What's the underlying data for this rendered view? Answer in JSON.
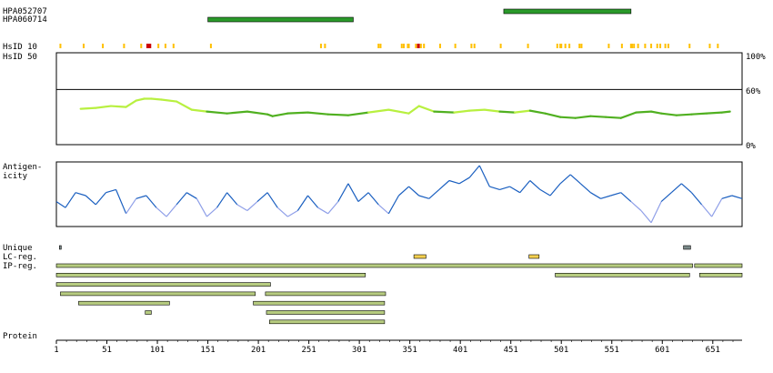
{
  "chart_data": {
    "type": "protein-feature-plot",
    "protein_length": 680,
    "x_ticks": [
      1,
      51,
      101,
      151,
      201,
      251,
      301,
      351,
      401,
      451,
      501,
      551,
      601,
      651
    ],
    "x_axis_label": "Protein",
    "antigens": [
      {
        "name": "HPA052707",
        "start": 444,
        "end": 570
      },
      {
        "name": "HPA060714",
        "start": 151,
        "end": 295
      }
    ],
    "hsid10": {
      "label": "HsID 10",
      "medium_positions": [
        5,
        28,
        47,
        68,
        85,
        102,
        109,
        117,
        154,
        263,
        267,
        320,
        322,
        343,
        345,
        349,
        350,
        357,
        362,
        365,
        381,
        396,
        412,
        415,
        441,
        468,
        497,
        500,
        501,
        505,
        509,
        519,
        521,
        548,
        561,
        570,
        571,
        573,
        577,
        584,
        590,
        596,
        599,
        604,
        607,
        628,
        648,
        656
      ],
      "high_positions": [
        91,
        92,
        93,
        94,
        359,
        360
      ]
    },
    "hsid50": {
      "label": "HsID 50",
      "y_ticks": [
        "100%",
        "60%",
        "0%"
      ],
      "threshold_percent": 60,
      "x": [
        25,
        40,
        55,
        70,
        80,
        88,
        95,
        105,
        120,
        135,
        150,
        170,
        190,
        210,
        215,
        230,
        250,
        270,
        290,
        310,
        330,
        350,
        360,
        375,
        395,
        410,
        425,
        440,
        455,
        470,
        485,
        500,
        515,
        530,
        545,
        560,
        575,
        590,
        600,
        615,
        630,
        645,
        660,
        668
      ],
      "values": [
        39,
        40,
        42,
        41,
        48,
        50,
        50,
        49,
        47,
        38,
        36,
        34,
        36,
        33,
        31,
        34,
        35,
        33,
        32,
        35,
        38,
        34,
        42,
        36,
        35,
        37,
        38,
        36,
        35,
        37,
        34,
        30,
        29,
        31,
        30,
        29,
        35,
        36,
        34,
        32,
        33,
        34,
        35,
        36
      ]
    },
    "antigenicity": {
      "label": "Antigen-\nicity",
      "x": [
        1,
        10,
        20,
        30,
        40,
        50,
        60,
        70,
        80,
        90,
        100,
        110,
        120,
        130,
        140,
        150,
        160,
        170,
        180,
        190,
        200,
        210,
        220,
        230,
        240,
        250,
        260,
        270,
        280,
        290,
        300,
        310,
        320,
        330,
        340,
        350,
        360,
        370,
        380,
        390,
        400,
        410,
        420,
        430,
        440,
        450,
        460,
        470,
        480,
        490,
        500,
        510,
        520,
        530,
        540,
        550,
        560,
        570,
        580,
        590,
        600,
        610,
        620,
        630,
        640,
        650,
        660,
        670,
        680
      ],
      "values": [
        0.4,
        0.3,
        0.55,
        0.5,
        0.35,
        0.55,
        0.6,
        0.2,
        0.45,
        0.5,
        0.3,
        0.15,
        0.35,
        0.55,
        0.45,
        0.15,
        0.3,
        0.55,
        0.35,
        0.25,
        0.4,
        0.55,
        0.3,
        0.15,
        0.25,
        0.5,
        0.3,
        0.2,
        0.4,
        0.7,
        0.4,
        0.55,
        0.35,
        0.2,
        0.5,
        0.65,
        0.5,
        0.45,
        0.6,
        0.75,
        0.7,
        0.8,
        1.0,
        0.65,
        0.6,
        0.65,
        0.55,
        0.75,
        0.6,
        0.5,
        0.7,
        0.85,
        0.7,
        0.55,
        0.45,
        0.5,
        0.55,
        0.4,
        0.25,
        0.05,
        0.4,
        0.55,
        0.7,
        0.55,
        0.35,
        0.15,
        0.45,
        0.5,
        0.45
      ]
    },
    "unique": {
      "label": "Unique",
      "segments": [
        {
          "start": 4,
          "end": 5
        },
        {
          "start": 622,
          "end": 629
        }
      ]
    },
    "lc_reg": {
      "label": "LC-reg.",
      "segments": [
        {
          "start": 355,
          "end": 367
        },
        {
          "start": 469,
          "end": 479
        }
      ]
    },
    "ip_reg": {
      "label": "IP-reg.",
      "rows": [
        [
          {
            "start": 1,
            "end": 631
          },
          {
            "start": 633,
            "end": 680
          }
        ],
        [
          {
            "start": 1,
            "end": 307
          },
          {
            "start": 495,
            "end": 628
          },
          {
            "start": 638,
            "end": 680
          }
        ],
        [
          {
            "start": 1,
            "end": 213
          }
        ],
        [
          {
            "start": 5,
            "end": 198
          },
          {
            "start": 208,
            "end": 327
          }
        ],
        [
          {
            "start": 23,
            "end": 113
          },
          {
            "start": 196,
            "end": 326
          }
        ],
        [
          {
            "start": 89,
            "end": 95
          },
          {
            "start": 209,
            "end": 326
          }
        ],
        [
          {
            "start": 212,
            "end": 326
          }
        ]
      ]
    },
    "colors": {
      "antigen_bar": "#2a9a2a",
      "hsid_medium": "#ffc000",
      "hsid_high": "#cc0000",
      "hsid50_high": "#b8f040",
      "hsid50_low": "#50b020",
      "antigenicity_high": "#1a5fc0",
      "antigenicity_low": "#8f9fe8",
      "unique_bar": "#7a8a8a",
      "lc_bar": "#f4d050",
      "ip_bar": "#b7cc80"
    }
  }
}
